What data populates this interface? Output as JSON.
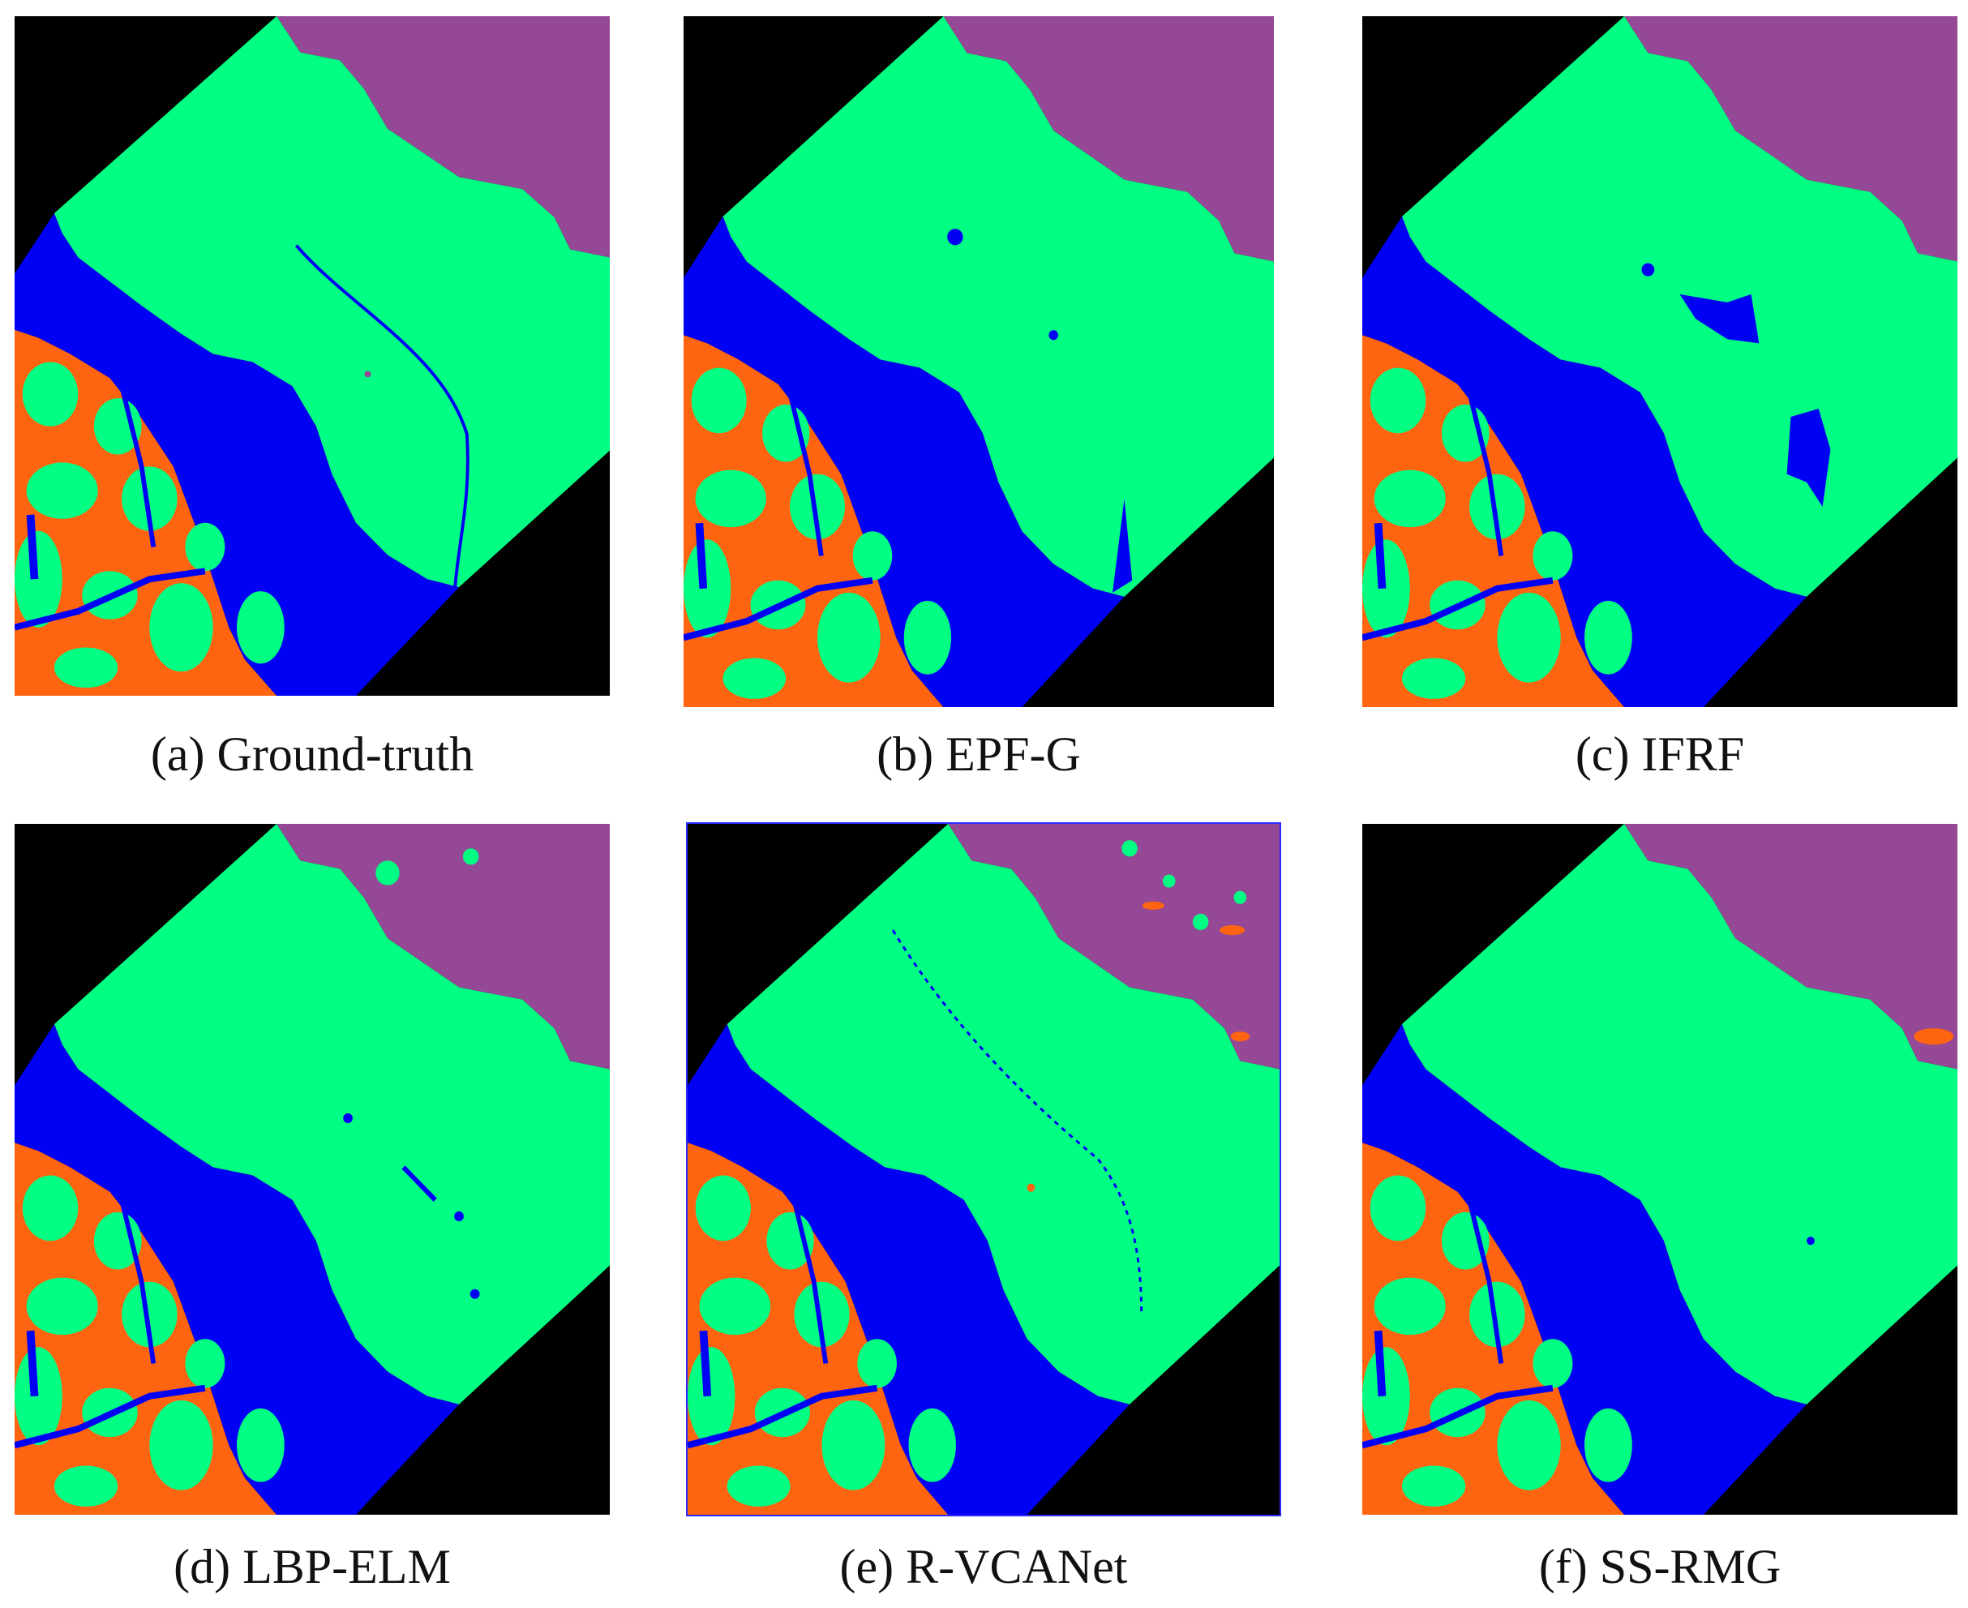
{
  "figure": {
    "legend_colors": {
      "background": "#000000",
      "class_purple": "#944895",
      "class_green": "#00FF82",
      "class_blue": "#0000F5",
      "class_orange": "#FF6410"
    },
    "panels": [
      {
        "id": "a",
        "caption": "(a) Ground-truth",
        "has_border": false
      },
      {
        "id": "b",
        "caption": "(b) EPF-G",
        "has_border": false
      },
      {
        "id": "c",
        "caption": "(c) IFRF",
        "has_border": false
      },
      {
        "id": "d",
        "caption": "(d) LBP-ELM",
        "has_border": false
      },
      {
        "id": "e",
        "caption": "(e) R-VCANet",
        "has_border": true
      },
      {
        "id": "f",
        "caption": "(f) SS-RMG",
        "has_border": false
      }
    ]
  }
}
